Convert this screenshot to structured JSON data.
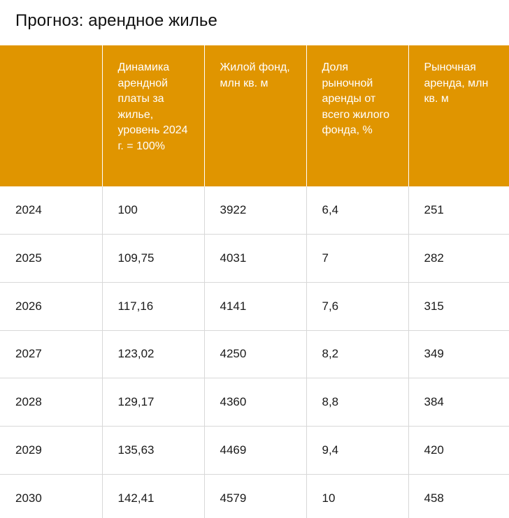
{
  "title": "Прогноз: арендное жилье",
  "colors": {
    "header_bg": "#e09500",
    "header_text": "#ffffff",
    "grid_line": "#d8d8d8"
  },
  "chart_data": {
    "type": "table",
    "title": "Прогноз: арендное жилье",
    "columns": [
      "",
      "Динамика арендной платы за жилье, уровень 2024 г. = 100%",
      "Жилой фонд, млн кв. м",
      "Доля рыночной аренды от всего жилого фонда, %",
      "Рыночная аренда, млн кв. м"
    ],
    "rows": [
      [
        "2024",
        "100",
        "3922",
        "6,4",
        "251"
      ],
      [
        "2025",
        "109,75",
        "4031",
        "7",
        "282"
      ],
      [
        "2026",
        "117,16",
        "4141",
        "7,6",
        "315"
      ],
      [
        "2027",
        "123,02",
        "4250",
        "8,2",
        "349"
      ],
      [
        "2028",
        "129,17",
        "4360",
        "8,8",
        "384"
      ],
      [
        "2029",
        "135,63",
        "4469",
        "9,4",
        "420"
      ],
      [
        "2030",
        "142,41",
        "4579",
        "10",
        "458"
      ]
    ]
  }
}
